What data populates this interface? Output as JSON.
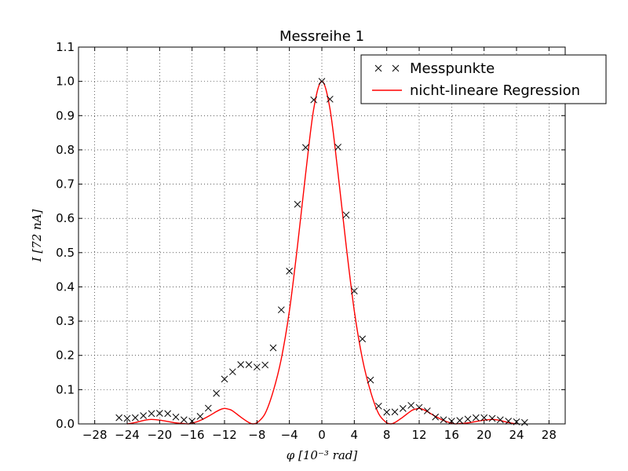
{
  "chart_data": {
    "type": "scatter",
    "title": "Messreihe 1",
    "xlabel": "φ    [10⁻³ rad]",
    "ylabel": "I    [72 nA]",
    "xlim": [
      -30,
      30
    ],
    "ylim": [
      0,
      1.1
    ],
    "xticks": [
      -28,
      -24,
      -20,
      -16,
      -12,
      -8,
      -4,
      0,
      4,
      8,
      12,
      16,
      20,
      24,
      28
    ],
    "yticks": [
      0.0,
      0.1,
      0.2,
      0.3,
      0.4,
      0.5,
      0.6,
      0.7,
      0.8,
      0.9,
      1.0,
      1.1
    ],
    "grid": true,
    "legend_position": "top-right",
    "series": [
      {
        "name": "Messpunkte",
        "kind": "scatter",
        "marker": "x",
        "color": "#000000",
        "x": [
          -25,
          -24,
          -23,
          -22,
          -21,
          -20,
          -19,
          -18,
          -17,
          -16,
          -15,
          -14,
          -13,
          -12,
          -11,
          -10,
          -9,
          -8,
          -7,
          -6,
          -5,
          -4,
          -3,
          -2,
          -1,
          0,
          1,
          2,
          3,
          4,
          5,
          6,
          7,
          8,
          9,
          10,
          11,
          12,
          13,
          14,
          15,
          16,
          17,
          18,
          19,
          20,
          21,
          22,
          23,
          24,
          25
        ],
        "y": [
          0.018,
          0.016,
          0.018,
          0.024,
          0.03,
          0.031,
          0.03,
          0.02,
          0.012,
          0.008,
          0.022,
          0.046,
          0.089,
          0.131,
          0.152,
          0.173,
          0.173,
          0.166,
          0.172,
          0.222,
          0.333,
          0.446,
          0.641,
          0.807,
          0.946,
          1.0,
          0.948,
          0.808,
          0.61,
          0.388,
          0.248,
          0.128,
          0.052,
          0.034,
          0.035,
          0.045,
          0.054,
          0.048,
          0.038,
          0.02,
          0.012,
          0.008,
          0.01,
          0.014,
          0.018,
          0.018,
          0.016,
          0.012,
          0.008,
          0.006,
          0.004
        ]
      },
      {
        "name": "nicht-lineare Regression",
        "kind": "line",
        "color": "#ff0000",
        "x": [
          -24,
          -23,
          -22,
          -21.5,
          -21,
          -20,
          -19,
          -18,
          -17,
          -16.5,
          -16,
          -15,
          -14,
          -13,
          -12.5,
          -12,
          -11.5,
          -11,
          -10,
          -9,
          -8.5,
          -8,
          -7,
          -6,
          -5,
          -4,
          -3,
          -2,
          -1,
          0,
          1,
          2,
          3,
          4,
          5,
          6,
          7,
          8,
          8.5,
          9,
          10,
          11,
          11.5,
          12,
          12.5,
          13,
          14,
          15,
          16,
          16.5,
          17,
          18,
          19,
          20,
          21,
          21.5,
          22,
          23,
          24
        ],
        "y": [
          0.0,
          0.004,
          0.01,
          0.012,
          0.013,
          0.011,
          0.007,
          0.003,
          0.001,
          0.0,
          0.002,
          0.01,
          0.022,
          0.036,
          0.042,
          0.045,
          0.043,
          0.038,
          0.02,
          0.004,
          0.0,
          0.003,
          0.03,
          0.095,
          0.19,
          0.33,
          0.52,
          0.73,
          0.92,
          1.0,
          0.92,
          0.73,
          0.52,
          0.33,
          0.19,
          0.095,
          0.03,
          0.003,
          0.0,
          0.004,
          0.02,
          0.038,
          0.043,
          0.045,
          0.042,
          0.036,
          0.022,
          0.01,
          0.002,
          0.0,
          0.001,
          0.003,
          0.007,
          0.011,
          0.013,
          0.012,
          0.01,
          0.004,
          0.0
        ]
      }
    ]
  }
}
